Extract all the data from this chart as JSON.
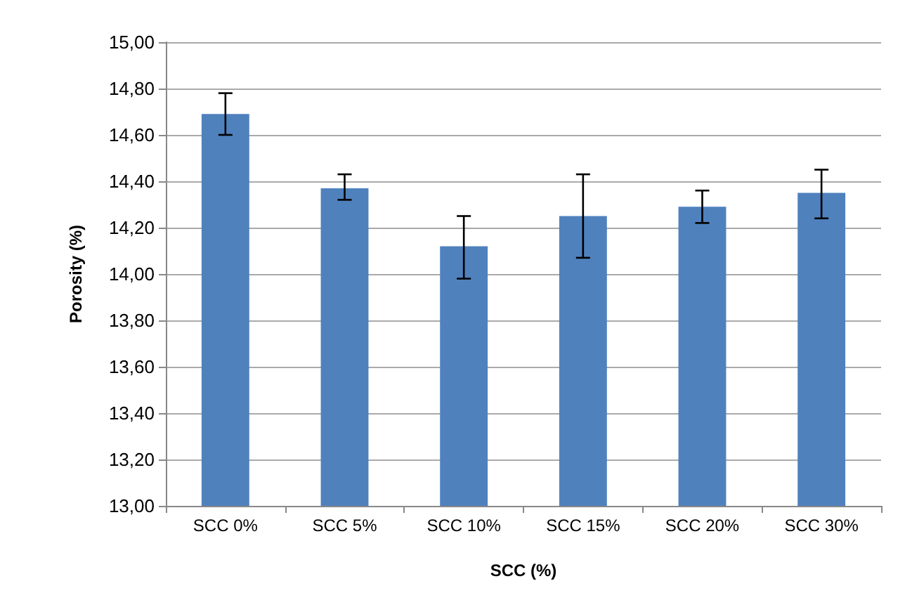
{
  "chart_data": {
    "type": "bar",
    "xlabel": "SCC (%)",
    "ylabel": "Porosity (%)",
    "categories": [
      "SCC 0%",
      "SCC 5%",
      "SCC 10%",
      "SCC 15%",
      "SCC 20%",
      "SCC 30%"
    ],
    "values": [
      14.69,
      14.37,
      14.12,
      14.25,
      14.29,
      14.35
    ],
    "errors": [
      [
        14.6,
        14.78
      ],
      [
        14.32,
        14.43
      ],
      [
        13.98,
        14.25
      ],
      [
        14.07,
        14.43
      ],
      [
        14.22,
        14.36
      ],
      [
        14.24,
        14.45
      ]
    ],
    "color": "#4f81bd",
    "ylim": [
      13,
      15
    ],
    "yticks": [
      {
        "value": 13,
        "label": "13,00"
      },
      {
        "value": 13.2,
        "label": "13,20"
      },
      {
        "value": 13.4,
        "label": "13,40"
      },
      {
        "value": 13.6,
        "label": "13,60"
      },
      {
        "value": 13.8,
        "label": "13,80"
      },
      {
        "value": 14,
        "label": "14,00"
      },
      {
        "value": 14.2,
        "label": "14,20"
      },
      {
        "value": 14.4,
        "label": "14,40"
      },
      {
        "value": 14.6,
        "label": "14,60"
      },
      {
        "value": 14.8,
        "label": "14,80"
      },
      {
        "value": 15,
        "label": "15,00"
      }
    ],
    "grid": "y"
  }
}
